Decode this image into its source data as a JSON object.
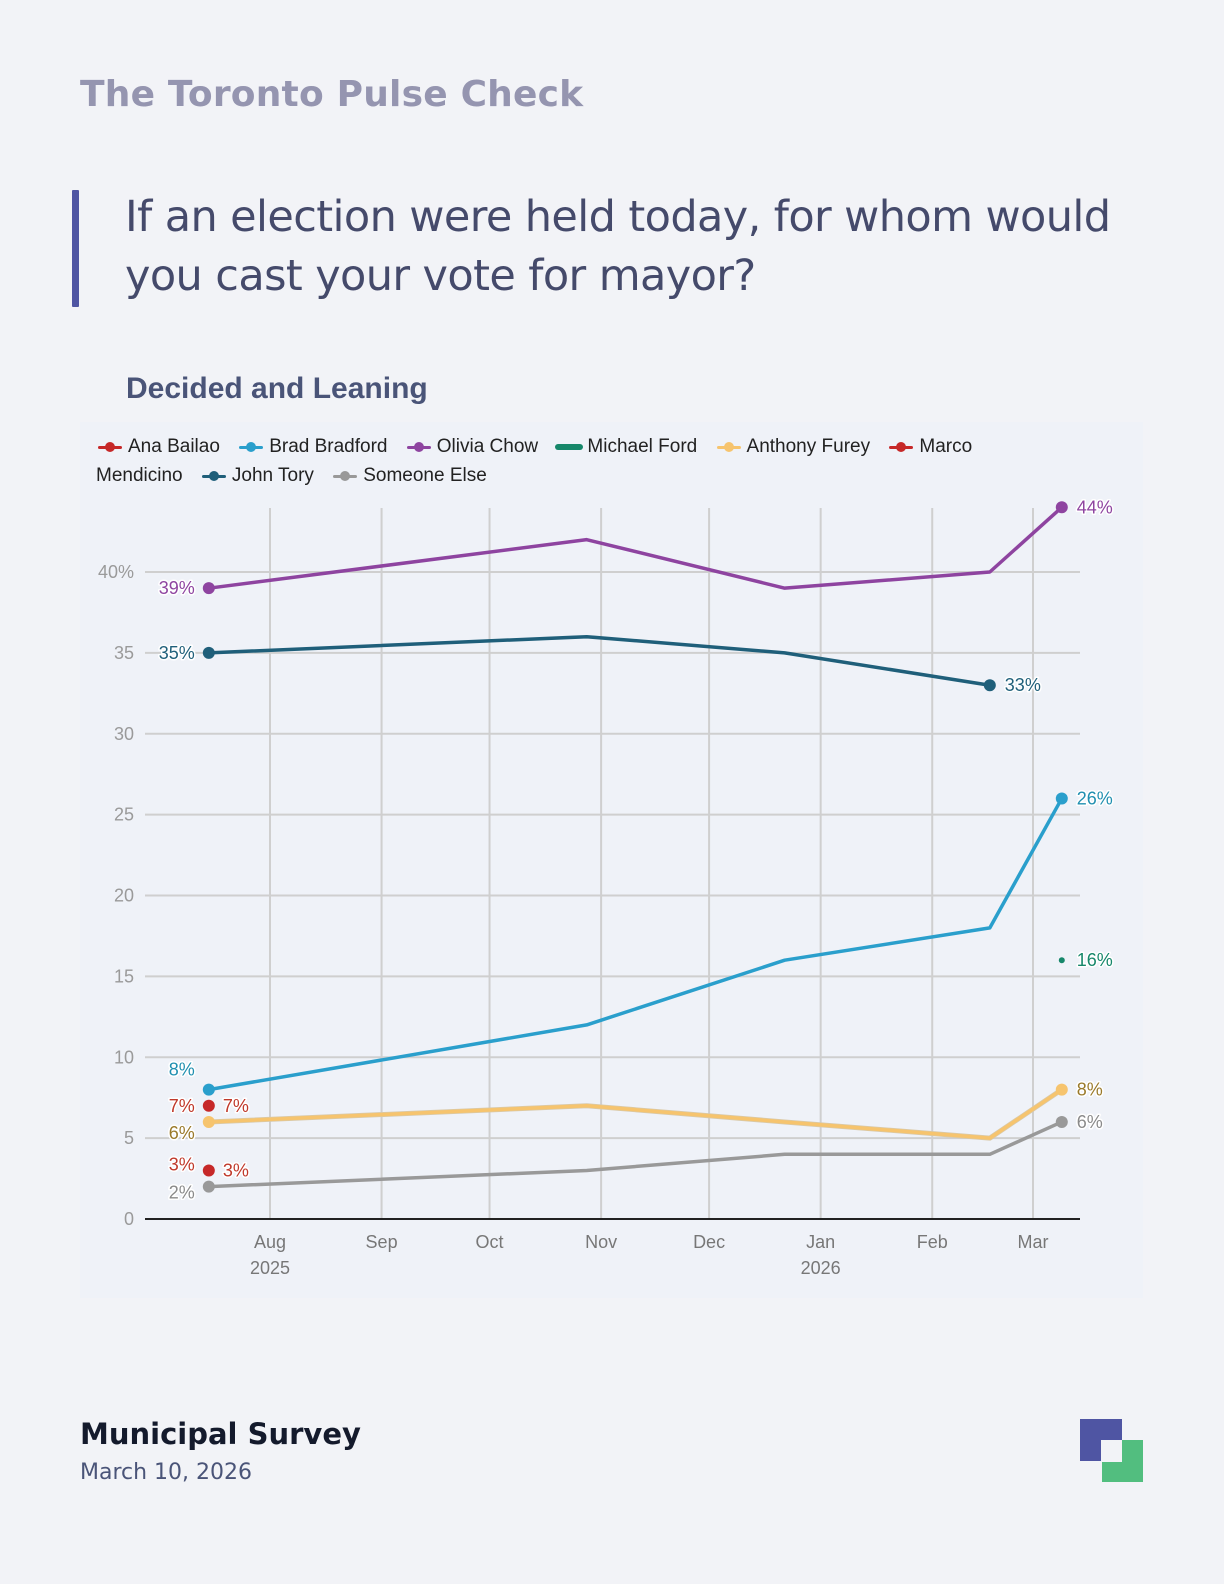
{
  "brand": "The Toronto Pulse Check",
  "question": "If an election were held today, for whom would you cast your vote for mayor?",
  "subtitle": "Decided and Leaning",
  "footer": {
    "title": "Municipal Survey",
    "date": "March 10, 2026"
  },
  "colors": {
    "accent": "#4f55a3",
    "logo_primary": "#4f55a3",
    "logo_secondary": "#52be7f"
  },
  "chart_data": {
    "type": "line",
    "title": "Decided and Leaning",
    "xlabel": "",
    "ylabel": "",
    "ylim": [
      0,
      44
    ],
    "yticks": [
      0,
      5,
      10,
      15,
      20,
      25,
      30,
      35,
      40
    ],
    "ytick_labels": [
      "0",
      "5",
      "10",
      "15",
      "20",
      "25",
      "30",
      "35",
      "40%"
    ],
    "x_dates": [
      "2025-07-15",
      "2025-10-28",
      "2025-12-22",
      "2026-02-17",
      "2026-03-09"
    ],
    "x_ticks": [
      {
        "date": "2025-08-01",
        "label": "Aug",
        "year": "2025"
      },
      {
        "date": "2025-09-01",
        "label": "Sep",
        "year": ""
      },
      {
        "date": "2025-10-01",
        "label": "Oct",
        "year": ""
      },
      {
        "date": "2025-11-01",
        "label": "Nov",
        "year": ""
      },
      {
        "date": "2025-12-01",
        "label": "Dec",
        "year": ""
      },
      {
        "date": "2026-01-01",
        "label": "Jan",
        "year": "2026"
      },
      {
        "date": "2026-02-01",
        "label": "Feb",
        "year": ""
      },
      {
        "date": "2026-03-01",
        "label": "Mar",
        "year": ""
      }
    ],
    "grid": true,
    "legend_position": "top",
    "series": [
      {
        "name": "Ana Bailao",
        "color": "#c62828",
        "marker": "dot",
        "values": [
          7,
          null,
          null,
          null,
          null
        ],
        "labels": [
          "7%",
          "",
          "",
          "",
          ""
        ],
        "label_side": "both"
      },
      {
        "name": "Brad Bradford",
        "color": "#2a9fcc",
        "marker": "dot",
        "values": [
          8,
          12,
          16,
          18,
          26
        ],
        "labels": [
          "8%",
          "",
          "",
          "",
          "26%"
        ]
      },
      {
        "name": "Olivia Chow",
        "color": "#8e44a0",
        "marker": "dot",
        "values": [
          39,
          42,
          39,
          40,
          44
        ],
        "labels": [
          "39%",
          "",
          "",
          "",
          "44%"
        ]
      },
      {
        "name": "Michael Ford",
        "color": "#16876a",
        "marker": "bar",
        "values": [
          null,
          null,
          null,
          null,
          16
        ],
        "labels": [
          "",
          "",
          "",
          "",
          "16%"
        ]
      },
      {
        "name": "Anthony Furey",
        "color": "#f6c46e",
        "marker": "dot",
        "values": [
          6,
          7,
          6,
          5,
          8
        ],
        "labels": [
          "6%",
          "",
          "",
          "",
          "8%"
        ]
      },
      {
        "name": "Marco Mendicino",
        "color": "#c62828",
        "marker": "dot",
        "values": [
          3,
          null,
          null,
          null,
          null
        ],
        "labels": [
          "3%",
          "",
          "",
          "",
          ""
        ],
        "label_side": "both"
      },
      {
        "name": "John Tory",
        "color": "#1f5f7a",
        "marker": "dot",
        "values": [
          35,
          36,
          35,
          33,
          null
        ],
        "labels": [
          "35%",
          "",
          "",
          "33%",
          ""
        ]
      },
      {
        "name": "Someone Else",
        "color": "#999999",
        "marker": "dot",
        "values": [
          2,
          3,
          4,
          4,
          6
        ],
        "labels": [
          "2%",
          "",
          "",
          "",
          "6%"
        ]
      }
    ]
  }
}
